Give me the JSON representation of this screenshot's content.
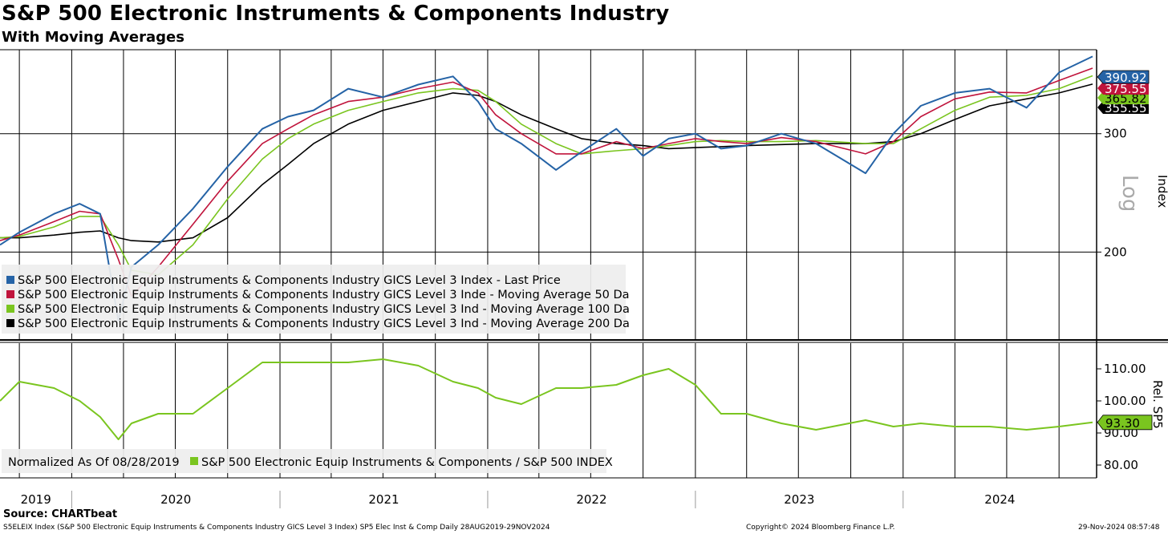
{
  "header": {
    "title": "S&P 500 Electronic Instruments & Components Industry",
    "subtitle": "With Moving Averages"
  },
  "footer": {
    "source": "Source: CHARTbeat",
    "description": "S5ELEIX Index (S&P 500 Electronic Equip Instruments & Components Industry GICS Level 3 Index) SP5 Elec Inst & Comp  Daily 28AUG2019-29NOV2024",
    "copyright": "Copyright© 2024 Bloomberg Finance L.P.",
    "timestamp": "29-Nov-2024 08:57:48"
  },
  "colors": {
    "price": "#2563a6",
    "ma50": "#c0143c",
    "ma100": "#7ac51f",
    "ma200": "#000000",
    "relative": "#7ac51f",
    "legend_bg": "#eeeeee"
  },
  "chart_data": [
    {
      "type": "line",
      "panel": "upper",
      "scale": "log",
      "ylabel": "Index",
      "scale_label": "Log",
      "yticks": [
        200,
        300
      ],
      "ylim": [
        148,
        400
      ],
      "x_labels": [
        "2019",
        "2020",
        "2021",
        "2022",
        "2023",
        "2024"
      ],
      "x": [
        "2019-08-28",
        "2019-10-01",
        "2019-12-01",
        "2020-01-15",
        "2020-02-20",
        "2020-03-23",
        "2020-04-15",
        "2020-06-01",
        "2020-08-01",
        "2020-10-01",
        "2020-12-01",
        "2021-01-15",
        "2021-03-01",
        "2021-05-01",
        "2021-07-01",
        "2021-09-01",
        "2021-11-01",
        "2021-12-15",
        "2022-01-15",
        "2022-03-01",
        "2022-05-01",
        "2022-06-15",
        "2022-08-15",
        "2022-10-01",
        "2022-11-15",
        "2023-01-01",
        "2023-02-15",
        "2023-04-01",
        "2023-06-01",
        "2023-08-01",
        "2023-10-27",
        "2023-12-15",
        "2024-02-01",
        "2024-04-01",
        "2024-06-01",
        "2024-08-05",
        "2024-10-01",
        "2024-11-29"
      ],
      "series": [
        {
          "name": "S&P 500 Electronic Equip Instruments & Components Industry GICS Level 3 Index - Last Price",
          "values": [
            205,
            214,
            228,
            236,
            228,
            158,
            190,
            205,
            232,
            268,
            305,
            318,
            325,
            350,
            340,
            355,
            365,
            335,
            305,
            290,
            265,
            282,
            305,
            278,
            295,
            300,
            285,
            288,
            300,
            290,
            262,
            300,
            330,
            345,
            350,
            328,
            370,
            390.92
          ]
        },
        {
          "name": "S&P 500 Electronic Equip Instruments & Components Industry GICS Level 3 Inde - Moving Average 50 Da",
          "values": [
            208,
            212,
            222,
            230,
            228,
            195,
            172,
            190,
            220,
            255,
            290,
            305,
            320,
            335,
            340,
            350,
            358,
            345,
            320,
            300,
            280,
            280,
            292,
            285,
            290,
            295,
            292,
            290,
            296,
            292,
            280,
            292,
            318,
            338,
            346,
            345,
            360,
            375.55
          ]
        },
        {
          "name": "S&P 500 Electronic Equip Instruments & Components Industry GICS Level 3 Ind - Moving Average 100 Da",
          "values": [
            210,
            211,
            218,
            226,
            226,
            205,
            188,
            185,
            205,
            240,
            275,
            295,
            310,
            325,
            335,
            345,
            350,
            348,
            335,
            310,
            290,
            280,
            283,
            285,
            288,
            292,
            293,
            292,
            292,
            293,
            290,
            290,
            305,
            325,
            340,
            342,
            350,
            365.82
          ]
        },
        {
          "name": "S&P 500 Electronic Equip Instruments & Components Industry GICS Level 3 Ind - Moving Average 200 Da",
          "values": [
            210,
            210,
            212,
            214,
            215,
            210,
            208,
            207,
            210,
            225,
            252,
            270,
            290,
            310,
            325,
            335,
            345,
            342,
            335,
            320,
            305,
            295,
            290,
            288,
            285,
            286,
            287,
            288,
            289,
            290,
            290,
            292,
            300,
            315,
            330,
            338,
            345,
            355.55
          ]
        }
      ],
      "last_values": [
        "390.92",
        "375.55",
        "365.82",
        "355.55"
      ]
    },
    {
      "type": "line",
      "panel": "lower",
      "ylabel": "Rel. SP5",
      "yticks": [
        "80.00",
        "90.00",
        "100.00",
        "110.00"
      ],
      "ylim": [
        76,
        118
      ],
      "note": "Normalized As Of 08/28/2019",
      "x": [
        "2019-08-28",
        "2019-10-01",
        "2019-12-01",
        "2020-01-15",
        "2020-02-20",
        "2020-03-23",
        "2020-04-15",
        "2020-06-01",
        "2020-08-01",
        "2020-10-01",
        "2020-12-01",
        "2021-01-15",
        "2021-03-01",
        "2021-05-01",
        "2021-07-01",
        "2021-09-01",
        "2021-11-01",
        "2021-12-15",
        "2022-01-15",
        "2022-03-01",
        "2022-05-01",
        "2022-06-15",
        "2022-08-15",
        "2022-10-01",
        "2022-11-15",
        "2023-01-01",
        "2023-02-15",
        "2023-04-01",
        "2023-06-01",
        "2023-08-01",
        "2023-10-27",
        "2023-12-15",
        "2024-02-01",
        "2024-04-01",
        "2024-06-01",
        "2024-08-05",
        "2024-10-01",
        "2024-11-29"
      ],
      "series": [
        {
          "name": "S&P 500 Electronic Equip Instruments & Components / S&P 500 INDEX",
          "values": [
            100,
            106,
            104,
            100,
            95,
            88,
            93,
            96,
            96,
            104,
            112,
            112,
            112,
            112,
            113,
            111,
            106,
            104,
            101,
            99,
            104,
            104,
            105,
            108,
            110,
            105,
            96,
            96,
            93,
            91,
            94,
            92,
            93,
            92,
            92,
            91,
            92,
            93.3
          ]
        }
      ],
      "last_value": "93.30"
    }
  ]
}
